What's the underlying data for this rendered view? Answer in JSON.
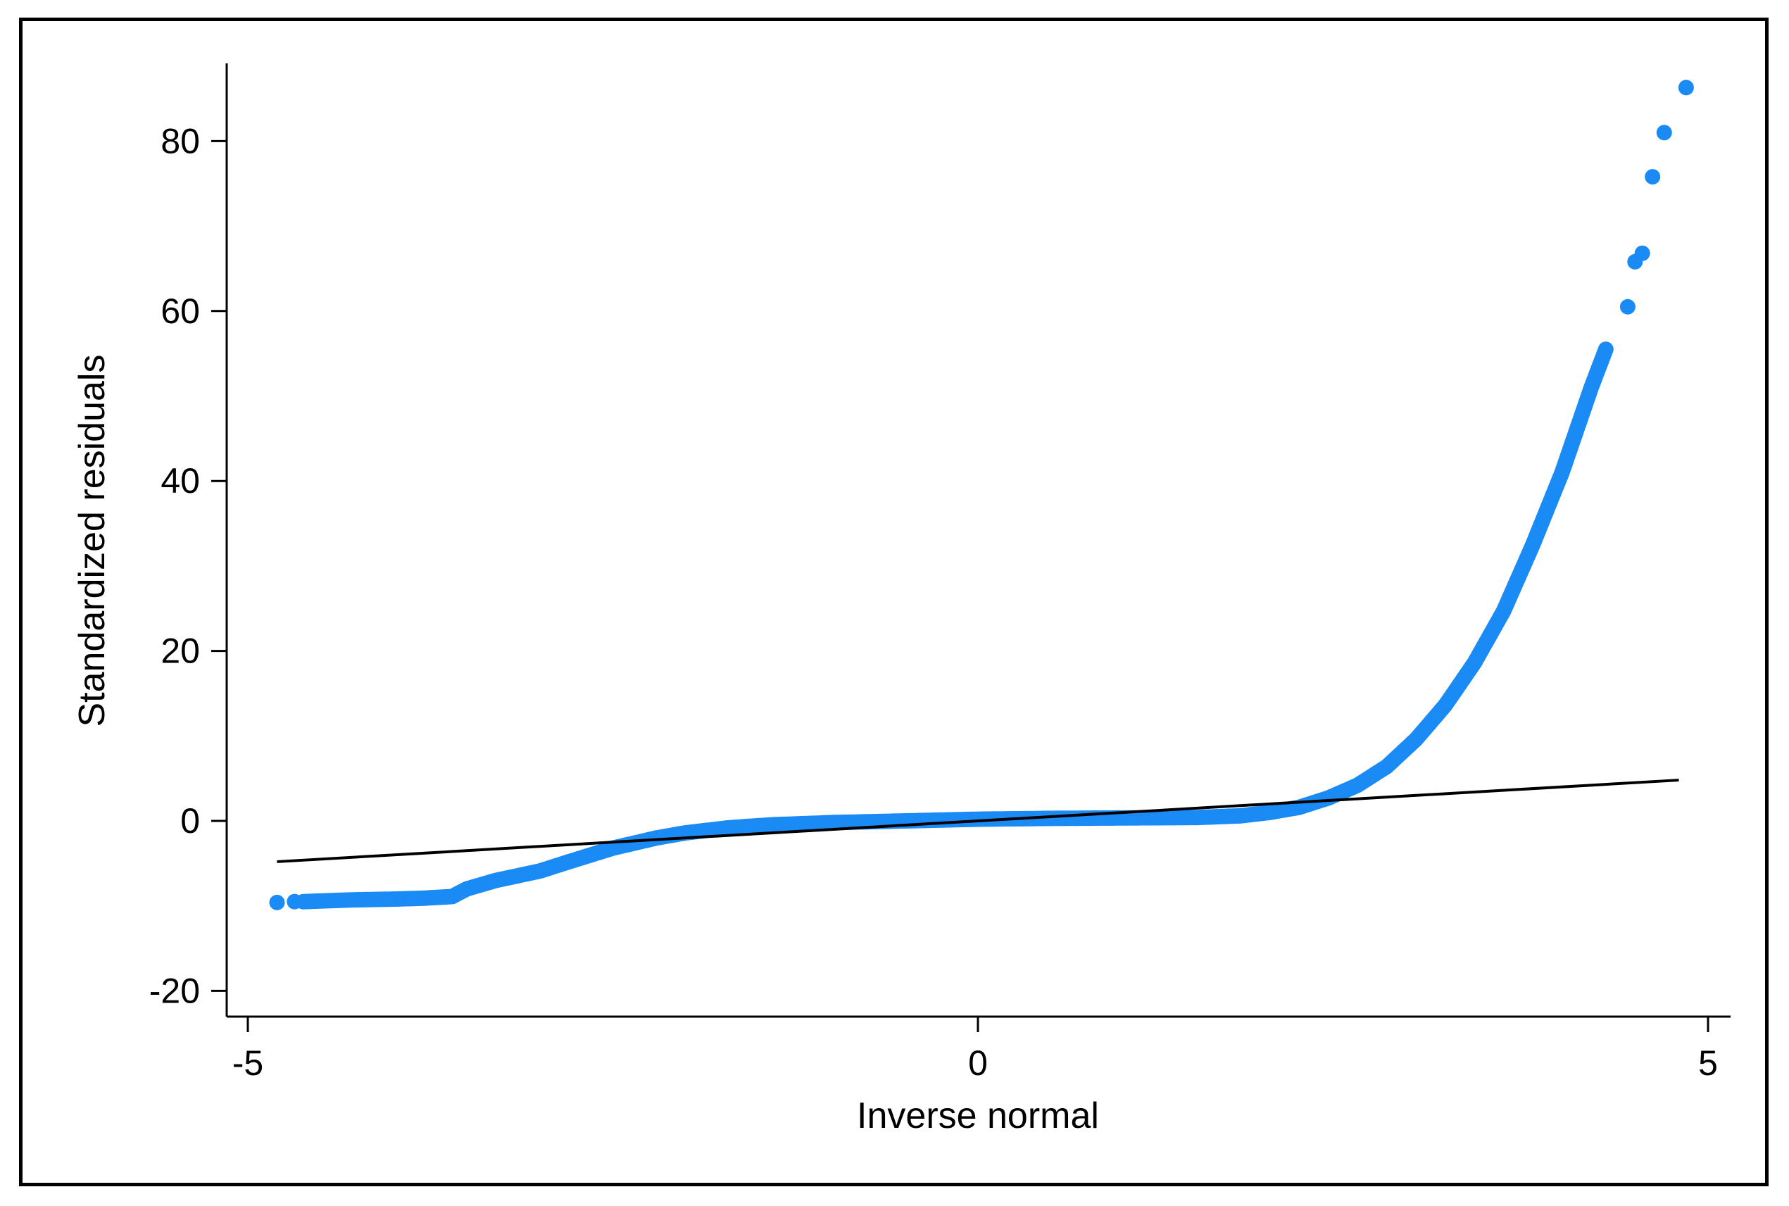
{
  "chart_data": {
    "type": "scatter",
    "title": "",
    "xlabel": "Inverse normal",
    "ylabel": "Standardized residuals",
    "xlim": [
      -5.3,
      5.3
    ],
    "ylim": [
      -23,
      89
    ],
    "xticks": [
      -5,
      0,
      5
    ],
    "xtick_labels": [
      "-5",
      "0",
      "5"
    ],
    "yticks": [
      -20,
      0,
      20,
      40,
      60,
      80
    ],
    "ytick_labels": [
      "-20",
      "0",
      "20",
      "40",
      "60",
      "80"
    ],
    "grid": false,
    "legend": "none",
    "marker_color": "#1a8af5",
    "line_color": "#000000",
    "reference_line": {
      "x": [
        -4.8,
        4.8
      ],
      "y": [
        -4.8,
        4.8
      ]
    },
    "curve_knots": [
      [
        -4.62,
        -9.5
      ],
      [
        -4.3,
        -9.3
      ],
      [
        -4.0,
        -9.2
      ],
      [
        -3.8,
        -9.1
      ],
      [
        -3.6,
        -8.9
      ],
      [
        -3.5,
        -8.0
      ],
      [
        -3.3,
        -7.0
      ],
      [
        -3.0,
        -5.9
      ],
      [
        -2.8,
        -4.8
      ],
      [
        -2.5,
        -3.2
      ],
      [
        -2.2,
        -2.0
      ],
      [
        -2.0,
        -1.4
      ],
      [
        -1.7,
        -0.8
      ],
      [
        -1.4,
        -0.45
      ],
      [
        -1.0,
        -0.2
      ],
      [
        -0.5,
        0.0
      ],
      [
        0.0,
        0.2
      ],
      [
        0.5,
        0.3
      ],
      [
        1.0,
        0.35
      ],
      [
        1.5,
        0.4
      ],
      [
        1.8,
        0.6
      ],
      [
        2.0,
        1.0
      ],
      [
        2.2,
        1.6
      ],
      [
        2.4,
        2.7
      ],
      [
        2.6,
        4.2
      ],
      [
        2.8,
        6.4
      ],
      [
        3.0,
        9.6
      ],
      [
        3.2,
        13.6
      ],
      [
        3.4,
        18.6
      ],
      [
        3.6,
        24.7
      ],
      [
        3.8,
        32.5
      ],
      [
        4.0,
        41.0
      ],
      [
        4.1,
        46.0
      ],
      [
        4.2,
        51.0
      ],
      [
        4.3,
        55.5
      ]
    ],
    "tail_points": [
      [
        -4.8,
        -9.6
      ],
      [
        -4.68,
        -9.5
      ],
      [
        4.45,
        60.5
      ],
      [
        4.5,
        65.8
      ],
      [
        4.55,
        66.8
      ],
      [
        4.62,
        75.8
      ],
      [
        4.7,
        81.0
      ],
      [
        4.85,
        86.3
      ]
    ]
  }
}
